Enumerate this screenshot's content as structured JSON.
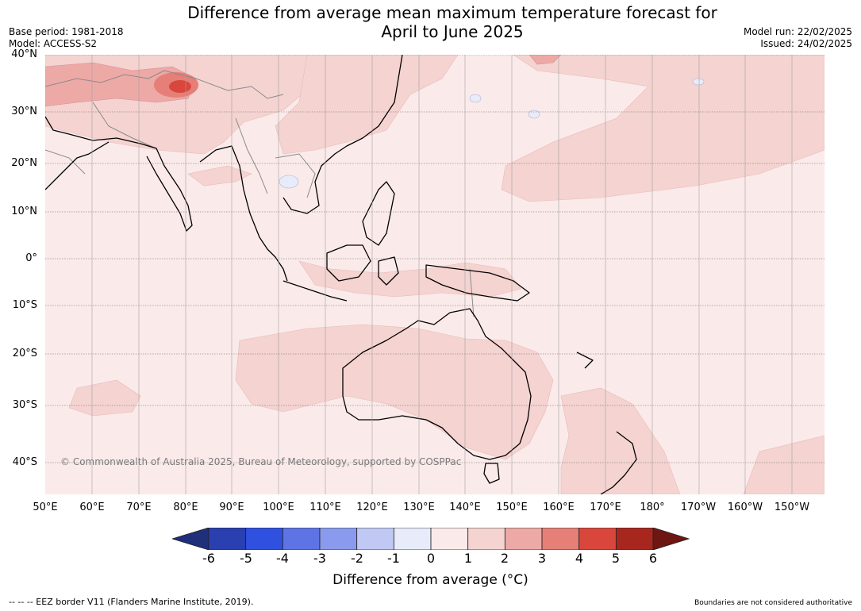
{
  "title_line1": "Difference from average mean maximum temperature forecast for",
  "title_line2": "April to June 2025",
  "base_period": "Base period: 1981-2018",
  "model": "Model: ACCESS-S2",
  "model_run": "Model run: 22/02/2025",
  "issued": "Issued: 24/02/2025",
  "copyright": "© Commonwealth of Australia 2025, Bureau of Meteorology, supported by COSPPac",
  "lat_labels": [
    "40°N",
    "30°N",
    "20°N",
    "10°N",
    "0°",
    "10°S",
    "20°S",
    "30°S",
    "40°S"
  ],
  "lon_labels": [
    "50°E",
    "60°E",
    "70°E",
    "80°E",
    "90°E",
    "100°E",
    "110°E",
    "120°E",
    "130°E",
    "140°E",
    "150°E",
    "160°E",
    "170°E",
    "180°",
    "170°W",
    "160°W",
    "150°W"
  ],
  "colorbar": {
    "ticks": [
      "-6",
      "-5",
      "-4",
      "-3",
      "-2",
      "-1",
      "0",
      "1",
      "2",
      "3",
      "4",
      "5",
      "6"
    ],
    "colors": [
      "#1f2f7a",
      "#2a3fb0",
      "#3050e0",
      "#5e74e4",
      "#8a9aec",
      "#c0c8f4",
      "#e8ecfa",
      "#fbeaea",
      "#f4d3d1",
      "#eda9a6",
      "#e57f78",
      "#d9473c",
      "#a7271f",
      "#6e1712"
    ],
    "label": "Difference from average (°C)"
  },
  "footer_left": "--  --  -- EEZ border V11 (Flanders Marine Institute, 2019).",
  "footer_right": "Boundaries are not considered authoritative",
  "colors": {
    "base_anomaly": "#fbeaea",
    "warm_anomaly": "#f4d3d1",
    "hot_anomaly": "#eda9a6",
    "cool_anomaly": "#e8ecfa"
  }
}
